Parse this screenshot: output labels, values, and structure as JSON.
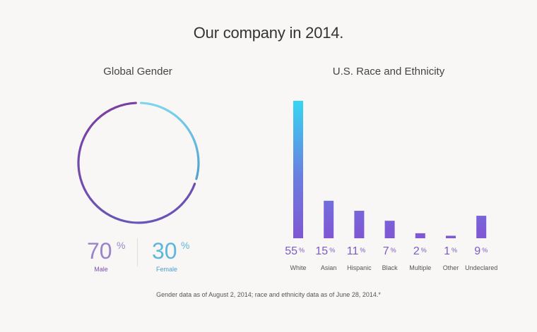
{
  "title": "Our company in 2014.",
  "gender": {
    "title": "Global Gender",
    "male_value": "70",
    "male_label": "Male",
    "female_value": "30",
    "female_label": "Female",
    "percent_symbol": "%",
    "colors": {
      "male": "#7b4fb0",
      "female": "#6fc9e3"
    }
  },
  "race": {
    "title": "U.S. Race and Ethnicity",
    "items": [
      {
        "value": "55",
        "label": "White"
      },
      {
        "value": "15",
        "label": "Asian"
      },
      {
        "value": "11",
        "label": "Hispanic"
      },
      {
        "value": "7",
        "label": "Black"
      },
      {
        "value": "2",
        "label": "Multiple"
      },
      {
        "value": "1",
        "label": "Other"
      },
      {
        "value": "9",
        "label": "Undeclared"
      }
    ],
    "percent_symbol": "%"
  },
  "footnote": "Gender data as of August 2, 2014; race and ethnicity data as of June 28, 2014.*",
  "chart_data": [
    {
      "type": "pie",
      "title": "Global Gender",
      "categories": [
        "Male",
        "Female"
      ],
      "values": [
        70,
        30
      ],
      "colors": [
        "#7b4fb0",
        "#6fc9e3"
      ]
    },
    {
      "type": "bar",
      "title": "U.S. Race and Ethnicity",
      "categories": [
        "White",
        "Asian",
        "Hispanic",
        "Black",
        "Multiple",
        "Other",
        "Undeclared"
      ],
      "values": [
        55,
        15,
        11,
        7,
        2,
        1,
        9
      ],
      "xlabel": "",
      "ylabel": "",
      "ylim": [
        0,
        55
      ],
      "grid": false,
      "colors": [
        "#3ad3f0",
        "#7a5cd6"
      ]
    }
  ]
}
